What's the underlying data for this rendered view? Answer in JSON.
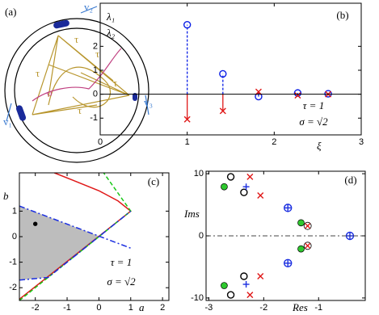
{
  "diagram": {
    "label": "(a)",
    "v1": "v₁",
    "v2": "v₂",
    "v3": "v₃",
    "tau": [
      "τ",
      "τ",
      "τ",
      "τ",
      "τ"
    ],
    "sigma": "σ"
  },
  "chart_data": [
    {
      "type": "scatter",
      "panel_label": "(b)",
      "ylabel": "λ₁",
      "ylabel2": "λ₂",
      "xlabel": "ξ",
      "annotations": [
        "τ = 1",
        "σ = √2"
      ],
      "stems": true,
      "baseline": 0,
      "xlim": [
        0,
        3
      ],
      "ylim": [
        -1.7,
        3.8
      ],
      "xticks": [
        0,
        1,
        2,
        3
      ],
      "yticks": [
        -1,
        0,
        1,
        2
      ],
      "series": [
        {
          "color": "#0a1ee6",
          "marker": "o",
          "x": [
            1,
            1.41,
            1.82,
            2.27,
            2.62
          ],
          "values": [
            2.9,
            0.85,
            -0.1,
            0.05,
            0.02
          ]
        },
        {
          "color": "#e01818",
          "marker": "x",
          "x": [
            1,
            1.41,
            1.82,
            2.27,
            2.62
          ],
          "values": [
            -1.05,
            -0.7,
            0.1,
            -0.05,
            0.0
          ]
        }
      ]
    },
    {
      "type": "line",
      "panel_label": "(c)",
      "ylabel": "b",
      "xlabel": "a",
      "annotations": [
        "τ = 1",
        "σ = √2"
      ],
      "xlim": [
        -2.5,
        2.2
      ],
      "ylim": [
        -2.5,
        2.5
      ],
      "xticks": [
        -2,
        -1,
        0,
        1,
        2
      ],
      "yticks": [
        -2,
        -1,
        0,
        1
      ],
      "series": [
        {
          "color": "#bdbdbd",
          "fill": true,
          "x": [
            -2.5,
            0.015,
            -1.6,
            -2.5
          ],
          "values": [
            1.2,
            0.015,
            -1.6,
            -1.7
          ]
        },
        {
          "color": "#e01818",
          "dash": "solid",
          "x": [
            -2.5,
            1,
            0.6,
            0,
            -0.8,
            -1.4
          ],
          "values": [
            -2.45,
            1,
            1.4,
            1.8,
            2.2,
            2.5
          ]
        },
        {
          "color": "#18c818",
          "dash": "dashed",
          "x": [
            -2.5,
            1,
            0.15
          ],
          "values": [
            -2.5,
            1,
            2.5
          ]
        },
        {
          "color": "#1a2ee0",
          "dash": "dashdot",
          "x": [
            -2.5,
            1
          ],
          "values": [
            1.2,
            -0.45
          ]
        },
        {
          "color": "#1a2ee0",
          "dash": "dashdot",
          "x": [
            -2.5,
            -1.6,
            1
          ],
          "values": [
            -1.7,
            -1.6,
            1
          ]
        },
        {
          "color": "#000000",
          "marker": "dot",
          "x": [
            -2
          ],
          "values": [
            0.5
          ]
        }
      ]
    },
    {
      "type": "scatter",
      "panel_label": "(d)",
      "ylabel": "Ims",
      "xlabel": "Res",
      "zero_line": true,
      "xlim": [
        -3.05,
        -0.15
      ],
      "ylim": [
        -10.4,
        10.4
      ],
      "xticks": [
        -3,
        -2,
        -1
      ],
      "yticks": [
        -10,
        0,
        10
      ],
      "series": [
        {
          "color": "#000000",
          "marker": "o",
          "x": [
            -2.6,
            -2.36,
            -2.36,
            -2.6
          ],
          "values": [
            9.5,
            7,
            -6.5,
            -9.5
          ]
        },
        {
          "color": "#2ec82e",
          "marker": "filled",
          "x": [
            -2.72,
            -2.72,
            -1.32,
            -1.32
          ],
          "values": [
            7.9,
            -8,
            2.1,
            -2.1
          ]
        },
        {
          "color": "#1a2ee0",
          "marker": "+",
          "x": [
            -2.32,
            -2.32
          ],
          "values": [
            7.9,
            -7.8
          ]
        },
        {
          "color": "#1a2ee0",
          "marker": "circled+",
          "x": [
            -1.56,
            -1.56,
            -0.43
          ],
          "values": [
            4.5,
            -4.4,
            0
          ]
        },
        {
          "color": "#e01818",
          "marker": "x",
          "x": [
            -2.25,
            -2.06,
            -2.06,
            -2.25
          ],
          "values": [
            9.5,
            6.5,
            -6.5,
            -9.5
          ]
        },
        {
          "color": "#e01818",
          "marker": "circledx",
          "x": [
            -1.2,
            -1.2
          ],
          "values": [
            1.6,
            -1.6
          ]
        }
      ]
    }
  ]
}
